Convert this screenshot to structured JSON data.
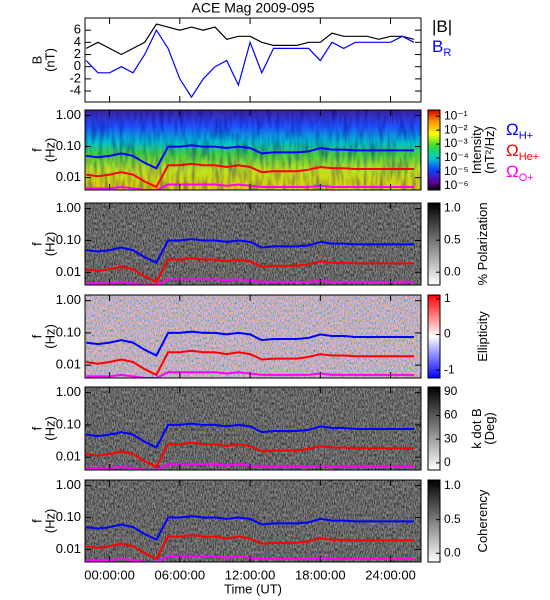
{
  "time_axis": {
    "xlim": [
      -2.1,
      26.6
    ],
    "xlabel": "Time (UT)",
    "xticks": [
      {
        "value": 0,
        "label": "00:00:00"
      },
      {
        "value": 6,
        "label": "06:00:00"
      },
      {
        "value": 12,
        "label": "12:00:00"
      },
      {
        "value": 18,
        "label": "18:00:00"
      },
      {
        "value": 24,
        "label": "24:00:00"
      }
    ]
  },
  "gyrofrequency_lines": {
    "x": [
      -2,
      -1,
      0,
      1,
      2,
      3,
      4,
      5,
      6,
      7,
      8,
      9,
      10,
      11,
      12,
      13,
      14,
      15,
      16,
      17,
      18,
      19,
      20,
      21,
      22,
      23,
      24,
      25,
      26
    ],
    "series": [
      {
        "name": "Ω",
        "subscript": "H+",
        "color": "#0000ff",
        "values": [
          0.05,
          0.045,
          0.05,
          0.06,
          0.05,
          0.03,
          0.02,
          0.1,
          0.1,
          0.11,
          0.1,
          0.1,
          0.09,
          0.1,
          0.09,
          0.06,
          0.065,
          0.065,
          0.065,
          0.07,
          0.09,
          0.08,
          0.08,
          0.075,
          0.075,
          0.075,
          0.075,
          0.075,
          0.075
        ]
      },
      {
        "name": "Ω",
        "subscript": "He+",
        "color": "#ff0000",
        "values": [
          0.0125,
          0.011,
          0.0125,
          0.015,
          0.0125,
          0.0075,
          0.005,
          0.025,
          0.025,
          0.028,
          0.025,
          0.025,
          0.022,
          0.025,
          0.022,
          0.015,
          0.016,
          0.016,
          0.016,
          0.018,
          0.022,
          0.02,
          0.02,
          0.019,
          0.019,
          0.019,
          0.019,
          0.019,
          0.019
        ]
      },
      {
        "name": "Ω",
        "subscript": "O+",
        "color": "#ff00ff",
        "values": [
          0.0045,
          0.0045,
          0.0045,
          0.005,
          0.0045,
          0.004,
          0.004,
          0.006,
          0.006,
          0.006,
          0.006,
          0.006,
          0.0055,
          0.006,
          0.0055,
          0.005,
          0.005,
          0.005,
          0.005,
          0.005,
          0.0055,
          0.005,
          0.005,
          0.005,
          0.005,
          0.005,
          0.005,
          0.005,
          0.005
        ]
      }
    ]
  },
  "chart_data": [
    {
      "type": "line",
      "title": "ACE Mag 2009-095",
      "ylabel": [
        "B",
        "(nT)"
      ],
      "ylim": [
        -5.8,
        8
      ],
      "yticks": [
        -4,
        -2,
        0,
        2,
        4,
        6
      ],
      "x": [
        -2,
        -1,
        0,
        1,
        2,
        3,
        4,
        5,
        6,
        7,
        8,
        9,
        10,
        11,
        12,
        13,
        14,
        15,
        16,
        17,
        18,
        19,
        20,
        21,
        22,
        23,
        24,
        25,
        26
      ],
      "series": [
        {
          "name": "|B|",
          "color": "#000000",
          "values": [
            3,
            4,
            3,
            2,
            3,
            4,
            7,
            6.5,
            6,
            6.5,
            6,
            6.5,
            4.5,
            5,
            5,
            4,
            3.5,
            3.5,
            3.5,
            4,
            4,
            5.5,
            5,
            5,
            5,
            4.5,
            5,
            5,
            4.5
          ]
        },
        {
          "name": "B",
          "subscript": "R",
          "color": "#0000ff",
          "values": [
            1,
            -1,
            -1,
            0,
            -1,
            2,
            6,
            3,
            -2,
            -5,
            -2,
            0,
            1,
            -3,
            4,
            -1,
            3,
            3,
            3,
            3,
            1,
            4,
            3,
            4,
            4,
            4,
            4,
            5,
            4
          ]
        }
      ]
    },
    {
      "type": "spectrogram",
      "ylabel": [
        "f",
        "(Hz)"
      ],
      "ylog": true,
      "ylim": [
        0.004,
        1.5
      ],
      "yticks": [
        {
          "value": 1,
          "label": "1.00"
        },
        {
          "value": 0.1,
          "label": "0.10"
        },
        0.01
      ],
      "gyro_legend": true,
      "colorbar": {
        "label": [
          "Intensity",
          "(nT²/Hz)"
        ],
        "log": true,
        "lim": [
          5e-07,
          0.28
        ],
        "ticks": [
          {
            "value": 0.1,
            "label": "10⁻¹"
          },
          {
            "value": 0.01,
            "label": "10⁻²"
          },
          {
            "value": 0.001,
            "label": "10⁻³"
          },
          {
            "value": 0.0001,
            "label": "10⁻⁴"
          },
          {
            "value": 1e-05,
            "label": "10⁻⁵"
          },
          {
            "value": 1e-06,
            "label": "10⁻⁶"
          }
        ]
      }
    },
    {
      "type": "spectrogram",
      "ylabel": [
        "f",
        "(Hz)"
      ],
      "ylog": true,
      "ylim": [
        0.004,
        1.5
      ],
      "yticks": [
        {
          "value": 1,
          "label": "1.00"
        },
        {
          "value": 0.1,
          "label": "0.10"
        },
        0.01
      ],
      "colorbar": {
        "label": [
          "% Polarization"
        ],
        "lim": [
          -0.2,
          1.08
        ],
        "ticks": [
          {
            "value": 1,
            "label": "1.0"
          },
          {
            "value": 0.5,
            "label": "0.5"
          },
          {
            "value": 0,
            "label": "0.0"
          }
        ]
      }
    },
    {
      "type": "spectrogram",
      "ylabel": [
        "f",
        "(Hz)"
      ],
      "ylog": true,
      "ylim": [
        0.004,
        1.5
      ],
      "yticks": [
        {
          "value": 1,
          "label": "1.00"
        },
        {
          "value": 0.1,
          "label": "0.10"
        },
        0.01
      ],
      "colorbar": {
        "label": [
          "Ellipticity"
        ],
        "lim": [
          -1.22,
          1.11
        ],
        "ticks": [
          1,
          0,
          -1
        ]
      }
    },
    {
      "type": "spectrogram",
      "ylabel": [
        "f",
        "(Hz)"
      ],
      "ylog": true,
      "ylim": [
        0.004,
        1.5
      ],
      "yticks": [
        {
          "value": 1,
          "label": "1.00"
        },
        {
          "value": 0.1,
          "label": "0.10"
        },
        0.01
      ],
      "colorbar": {
        "label": [
          "k dot B",
          "(Deg)"
        ],
        "lim": [
          -9,
          96
        ],
        "ticks": [
          90,
          60,
          30,
          0
        ]
      }
    },
    {
      "type": "spectrogram",
      "ylabel": [
        "f",
        "(Hz)"
      ],
      "ylog": true,
      "ylim": [
        0.004,
        1.5
      ],
      "yticks": [
        {
          "value": 1,
          "label": "1.00"
        },
        {
          "value": 0.1,
          "label": "0.10"
        },
        0.01
      ],
      "colorbar": {
        "label": [
          "Coherency"
        ],
        "lim": [
          -0.13,
          1.09
        ],
        "ticks": [
          {
            "value": 1,
            "label": "1.0"
          },
          {
            "value": 0.5,
            "label": "0.5"
          },
          {
            "value": 0,
            "label": "0.0"
          }
        ]
      }
    }
  ]
}
